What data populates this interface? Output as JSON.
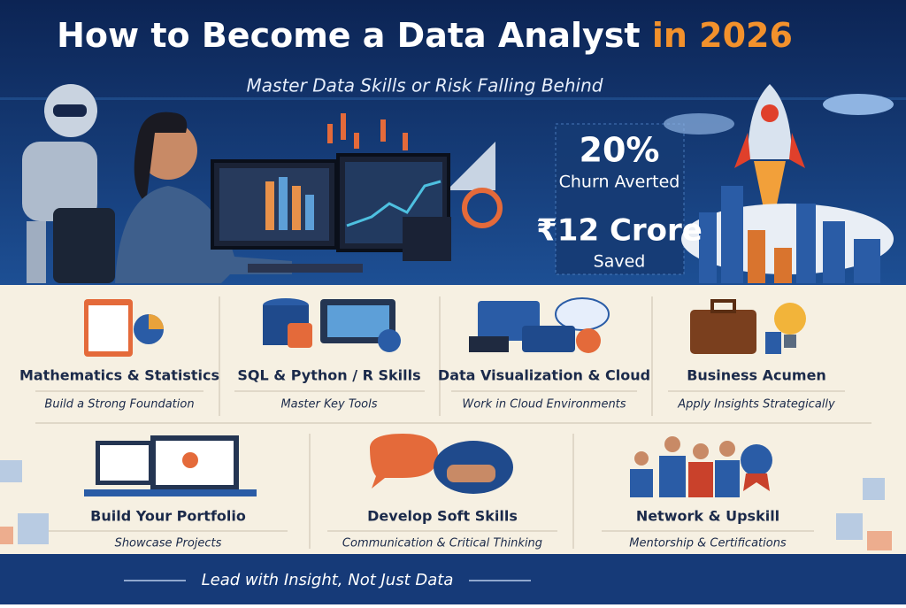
{
  "header": {
    "title": "How to Become a Data Analyst",
    "title_highlight": "in 2026",
    "subtitle": "Master Data Skills or Risk Falling Behind"
  },
  "stats": [
    {
      "value": "20%",
      "label": "Churn Averted"
    },
    {
      "value": "₹12 Crore",
      "label": "Saved"
    }
  ],
  "skills_row_1": [
    {
      "title": "Mathematics & Statistics",
      "subtitle": "Build a Strong Foundation"
    },
    {
      "title": "SQL & Python / R Skills",
      "subtitle": "Master Key Tools"
    },
    {
      "title": "Data Visualization & Cloud",
      "subtitle": "Work in Cloud Environments"
    },
    {
      "title": "Business Acumen",
      "subtitle": "Apply Insights Strategically"
    }
  ],
  "skills_row_2": [
    {
      "title": "Build Your Portfolio",
      "subtitle": "Showcase Projects"
    },
    {
      "title": "Develop Soft Skills",
      "subtitle": "Communication & Critical Thinking"
    },
    {
      "title": "Network & Upskill",
      "subtitle": "Mentorship & Certifications"
    }
  ],
  "footer": {
    "tagline": "Lead with Insight, Not Just Data"
  }
}
